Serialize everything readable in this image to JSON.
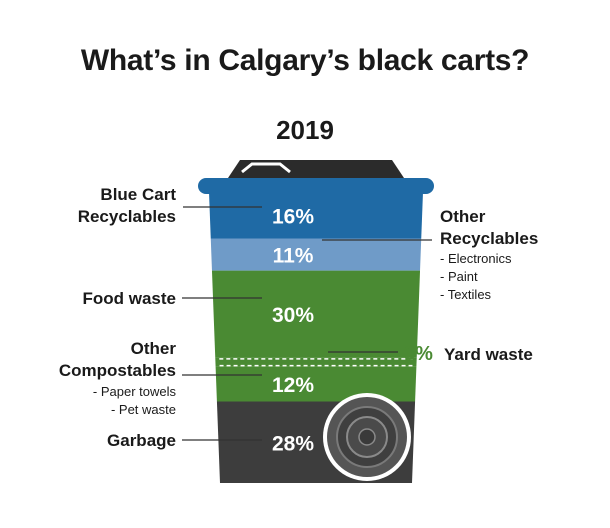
{
  "title": "What’s in Calgary’s black carts?",
  "subtitle": "2019",
  "colors": {
    "blue_cart": "#1f6aa5",
    "other_recyclables": "#6f9bc8",
    "green": "#4a8a33",
    "garbage": "#3d3d3d",
    "percent_text": "#ffffff",
    "yard_callout": "#4a8a33",
    "leader": "#333333"
  },
  "chart_data": {
    "type": "stacked-bar",
    "title": "What’s in Calgary’s black carts?",
    "subtitle": "2019",
    "unit": "%",
    "segments": [
      {
        "label": "Blue Cart Recyclables",
        "value": 16,
        "display": "16%",
        "side": "left",
        "color": "#1f6aa5"
      },
      {
        "label": "Other Recyclables",
        "value": 11,
        "display": "11%",
        "side": "right",
        "color": "#6f9bc8",
        "details": [
          "- Electronics",
          "- Paint",
          "- Textiles"
        ]
      },
      {
        "label": "Food waste",
        "value": 30,
        "display": "30%",
        "side": "left",
        "color": "#4a8a33"
      },
      {
        "label": "Yard waste",
        "value": 3,
        "display": "3%",
        "side": "right",
        "color": "#4a8a33",
        "dashed": true
      },
      {
        "label": "Other Compostables",
        "value": 12,
        "display": "12%",
        "side": "left",
        "color": "#4a8a33",
        "details": [
          "- Paper towels",
          "- Pet waste"
        ]
      },
      {
        "label": "Garbage",
        "value": 28,
        "display": "28%",
        "side": "left",
        "color": "#3d3d3d"
      }
    ]
  },
  "labels": {
    "blue_cart_line1": "Blue Cart",
    "blue_cart_line2": "Recyclables",
    "other_rec_line1": "Other",
    "other_rec_line2": "Recyclables",
    "other_rec_detail1": "- Electronics",
    "other_rec_detail2": "- Paint",
    "other_rec_detail3": "- Textiles",
    "food": "Food waste",
    "yard_pct": "3%",
    "yard": "Yard waste",
    "other_comp_line1": "Other",
    "other_comp_line2": "Compostables",
    "other_comp_detail1": "- Paper towels",
    "other_comp_detail2": "- Pet waste",
    "garbage": "Garbage"
  }
}
